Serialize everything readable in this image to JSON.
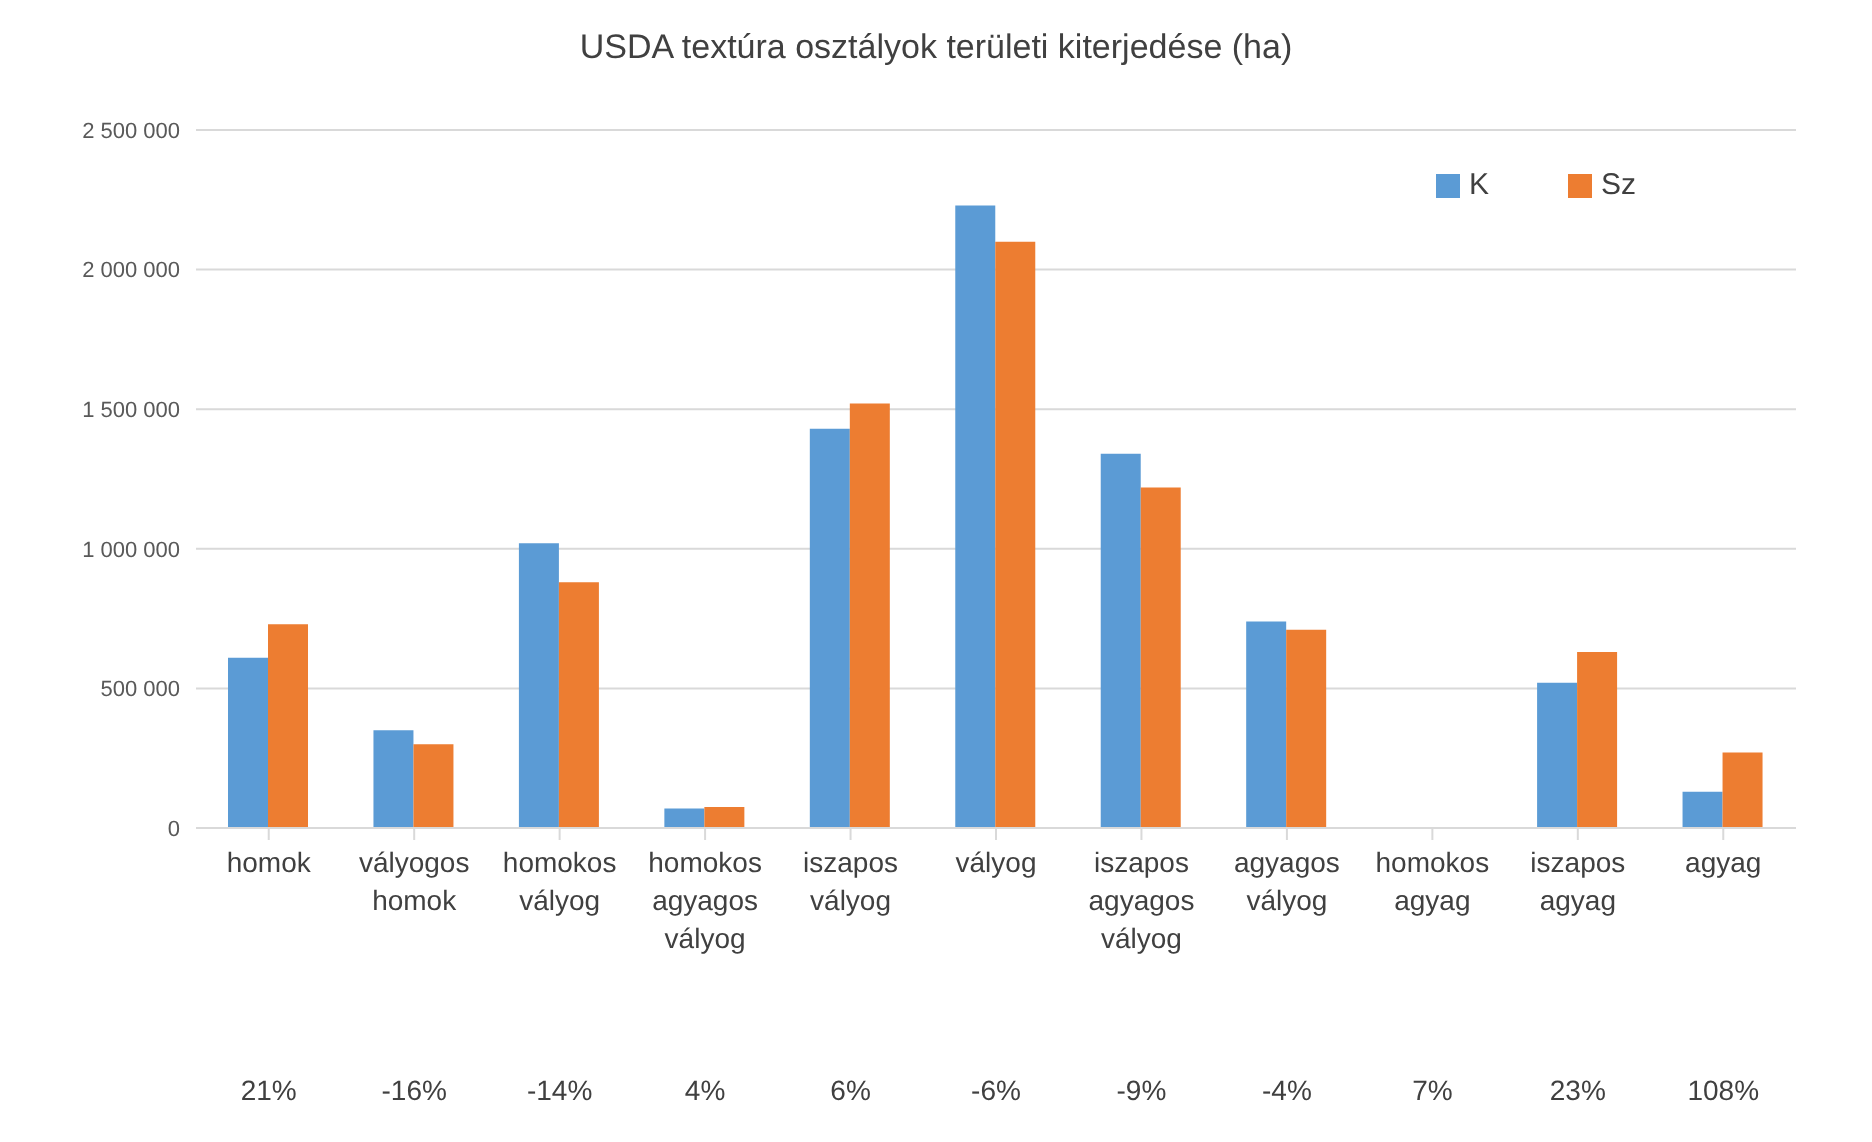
{
  "chart_data": {
    "type": "bar",
    "title": "USDA textúra osztályok területi kiterjedése (ha)",
    "categories": [
      "homok",
      "vályogos homok",
      "homokos vályog",
      "homokos agyagos vályog",
      "iszapos vályog",
      "vályog",
      "iszapos agyagos vályog",
      "agyagos vályog",
      "homokos agyag",
      "iszapos agyag",
      "agyag"
    ],
    "series": [
      {
        "name": "K",
        "color": "#5b9bd5",
        "values": [
          610000,
          350000,
          1020000,
          70000,
          1430000,
          2230000,
          1340000,
          740000,
          0,
          520000,
          130000
        ]
      },
      {
        "name": "Sz",
        "color": "#ed7d31",
        "values": [
          730000,
          300000,
          880000,
          75000,
          1520000,
          2100000,
          1220000,
          710000,
          0,
          630000,
          270000
        ]
      }
    ],
    "ylim": [
      0,
      2500000
    ],
    "yticks": [
      0,
      {
        "value": 500000,
        "label": "500 000"
      },
      {
        "value": 1000000,
        "label": "1 000 000"
      },
      {
        "value": 1500000,
        "label": "1 500 000"
      },
      {
        "value": 2000000,
        "label": "2 000 000"
      },
      {
        "value": 2500000,
        "label": "2 500 000"
      }
    ],
    "annotations": [
      "21%",
      "-16%",
      "-14%",
      "4%",
      "6%",
      "-6%",
      "-9%",
      "-4%",
      "7%",
      "23%",
      "108%"
    ],
    "grid": "y",
    "legend": "top right"
  }
}
